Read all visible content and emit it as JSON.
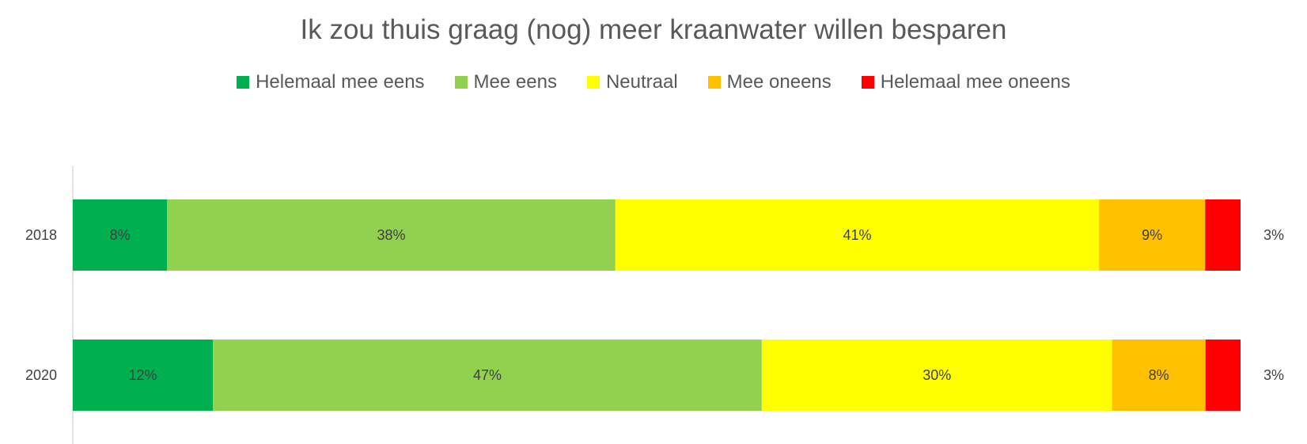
{
  "chart_data": {
    "type": "bar",
    "orientation": "horizontal",
    "stacked": true,
    "title": "Ik zou thuis graag (nog) meer kraanwater willen besparen",
    "categories": [
      "2018",
      "2020"
    ],
    "series": [
      {
        "name": "Helemaal mee eens",
        "color": "#00B050",
        "values": [
          8,
          12
        ],
        "labels": [
          "8%",
          "12%"
        ]
      },
      {
        "name": "Mee eens",
        "color": "#92D050",
        "values": [
          38,
          47
        ],
        "labels": [
          "38%",
          "47%"
        ]
      },
      {
        "name": "Neutraal",
        "color": "#FFFF00",
        "values": [
          41,
          30
        ],
        "labels": [
          "41%",
          "30%"
        ]
      },
      {
        "name": "Mee oneens",
        "color": "#FFC000",
        "values": [
          9,
          8
        ],
        "labels": [
          "9%",
          "8%"
        ]
      },
      {
        "name": "Helemaal mee oneens",
        "color": "#FF0000",
        "values": [
          3,
          3
        ],
        "labels": [
          "3%",
          "3%"
        ]
      }
    ],
    "xlim": [
      0,
      100
    ],
    "legend_position": "top",
    "grid": false
  }
}
